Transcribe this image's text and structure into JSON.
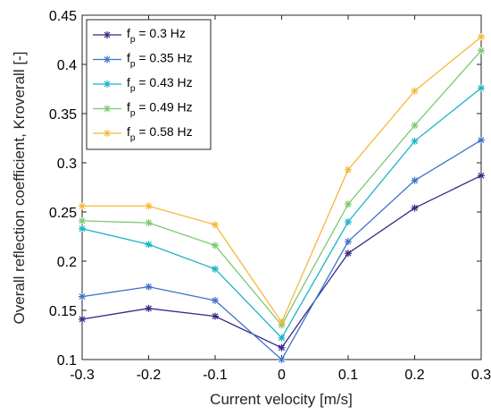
{
  "chart_data": {
    "type": "line",
    "title": "",
    "xlabel": "Current velocity [m/s]",
    "ylabel": "Overall reflection coefficient, Kroverall [-]",
    "xlim": [
      -0.3,
      0.3
    ],
    "ylim": [
      0.1,
      0.45
    ],
    "x_ticks": [
      "-0.3",
      "-0.2",
      "-0.1",
      "0",
      "0.1",
      "0.2",
      "0.3"
    ],
    "y_ticks": [
      "0.1",
      "0.15",
      "0.2",
      "0.25",
      "0.3",
      "0.35",
      "0.4",
      "0.45"
    ],
    "x": [
      -0.3,
      -0.2,
      -0.1,
      0,
      0.1,
      0.2,
      0.3
    ],
    "grid": false,
    "legend_position": "top-left",
    "series": [
      {
        "name": "f",
        "sub": "p",
        "rest": " = 0.3 Hz",
        "color": "#352a87",
        "values": [
          0.141,
          0.152,
          0.144,
          0.112,
          0.208,
          0.254,
          0.287
        ]
      },
      {
        "name": "f",
        "sub": "p",
        "rest": " = 0.35 Hz",
        "color": "#3d73c6",
        "values": [
          0.164,
          0.174,
          0.16,
          0.1,
          0.22,
          0.282,
          0.323
        ]
      },
      {
        "name": "f",
        "sub": "p",
        "rest": " = 0.43 Hz",
        "color": "#1bb3c7",
        "values": [
          0.233,
          0.217,
          0.192,
          0.122,
          0.24,
          0.322,
          0.376
        ]
      },
      {
        "name": "f",
        "sub": "p",
        "rest": " = 0.49 Hz",
        "color": "#7cc872",
        "values": [
          0.241,
          0.239,
          0.216,
          0.135,
          0.258,
          0.338,
          0.414
        ]
      },
      {
        "name": "f",
        "sub": "p",
        "rest": " = 0.58 Hz",
        "color": "#f5b83a",
        "values": [
          0.256,
          0.256,
          0.237,
          0.138,
          0.293,
          0.373,
          0.428
        ]
      }
    ]
  }
}
